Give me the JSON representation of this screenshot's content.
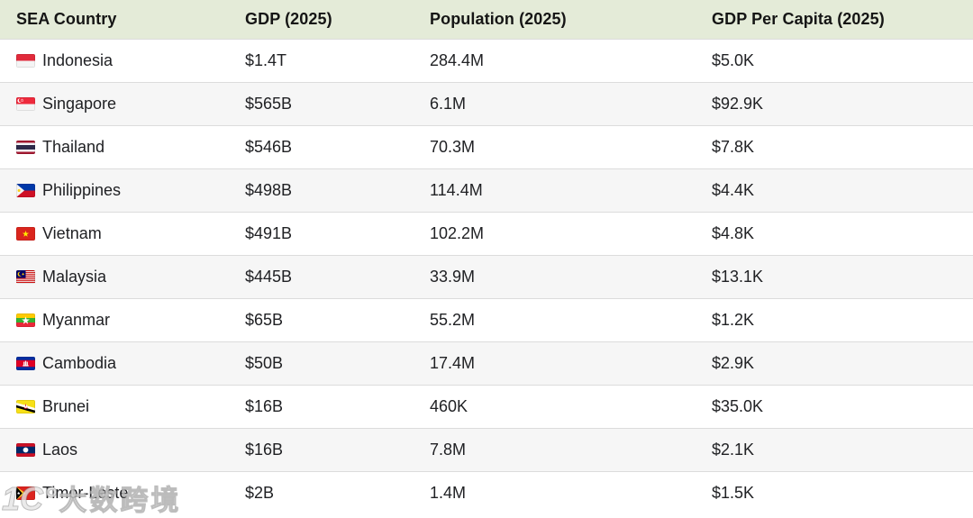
{
  "colors": {
    "header_bg": "#e4ebd8",
    "header_text": "#151515",
    "body_text": "#202124",
    "row_bg": "#ffffff",
    "row_alt_bg": "#f6f6f6",
    "divider": "#dcdcdc"
  },
  "table": {
    "columns": [
      {
        "id": "country",
        "label": "SEA Country"
      },
      {
        "id": "gdp",
        "label": "GDP (2025)"
      },
      {
        "id": "population",
        "label": "Population (2025)"
      },
      {
        "id": "gdp_per_capita",
        "label": "GDP Per Capita (2025)"
      }
    ],
    "rows": [
      {
        "flag": "indonesia",
        "country": "Indonesia",
        "gdp": "$1.4T",
        "population": "284.4M",
        "gdp_per_capita": "$5.0K"
      },
      {
        "flag": "singapore",
        "country": "Singapore",
        "gdp": "$565B",
        "population": "6.1M",
        "gdp_per_capita": "$92.9K"
      },
      {
        "flag": "thailand",
        "country": "Thailand",
        "gdp": "$546B",
        "population": "70.3M",
        "gdp_per_capita": "$7.8K"
      },
      {
        "flag": "philippines",
        "country": "Philippines",
        "gdp": "$498B",
        "population": "114.4M",
        "gdp_per_capita": "$4.4K"
      },
      {
        "flag": "vietnam",
        "country": "Vietnam",
        "gdp": "$491B",
        "population": "102.2M",
        "gdp_per_capita": "$4.8K"
      },
      {
        "flag": "malaysia",
        "country": "Malaysia",
        "gdp": "$445B",
        "population": "33.9M",
        "gdp_per_capita": "$13.1K"
      },
      {
        "flag": "myanmar",
        "country": "Myanmar",
        "gdp": "$65B",
        "population": "55.2M",
        "gdp_per_capita": "$1.2K"
      },
      {
        "flag": "cambodia",
        "country": "Cambodia",
        "gdp": "$50B",
        "population": "17.4M",
        "gdp_per_capita": "$2.9K"
      },
      {
        "flag": "brunei",
        "country": "Brunei",
        "gdp": "$16B",
        "population": "460K",
        "gdp_per_capita": "$35.0K"
      },
      {
        "flag": "laos",
        "country": "Laos",
        "gdp": "$16B",
        "population": "7.8M",
        "gdp_per_capita": "$2.1K"
      },
      {
        "flag": "timor-leste",
        "country": "Timor-Leste",
        "gdp": "$2B",
        "population": "1.4M",
        "gdp_per_capita": "$1.5K"
      }
    ]
  },
  "watermark": {
    "logo": "1C°",
    "text": "大数跨境"
  },
  "chart_data": {
    "type": "table",
    "title": "",
    "columns": [
      "SEA Country",
      "GDP (2025)",
      "Population (2025)",
      "GDP Per Capita (2025)"
    ],
    "rows": [
      [
        "Indonesia",
        "$1.4T",
        "284.4M",
        "$5.0K"
      ],
      [
        "Singapore",
        "$565B",
        "6.1M",
        "$92.9K"
      ],
      [
        "Thailand",
        "$546B",
        "70.3M",
        "$7.8K"
      ],
      [
        "Philippines",
        "$498B",
        "114.4M",
        "$4.4K"
      ],
      [
        "Vietnam",
        "$491B",
        "102.2M",
        "$4.8K"
      ],
      [
        "Malaysia",
        "$445B",
        "33.9M",
        "$13.1K"
      ],
      [
        "Myanmar",
        "$65B",
        "55.2M",
        "$1.2K"
      ],
      [
        "Cambodia",
        "$50B",
        "17.4M",
        "$2.9K"
      ],
      [
        "Brunei",
        "$16B",
        "460K",
        "$35.0K"
      ],
      [
        "Laos",
        "$16B",
        "7.8M",
        "$2.1K"
      ],
      [
        "Timor-Leste",
        "$2B",
        "1.4M",
        "$1.5K"
      ]
    ]
  }
}
